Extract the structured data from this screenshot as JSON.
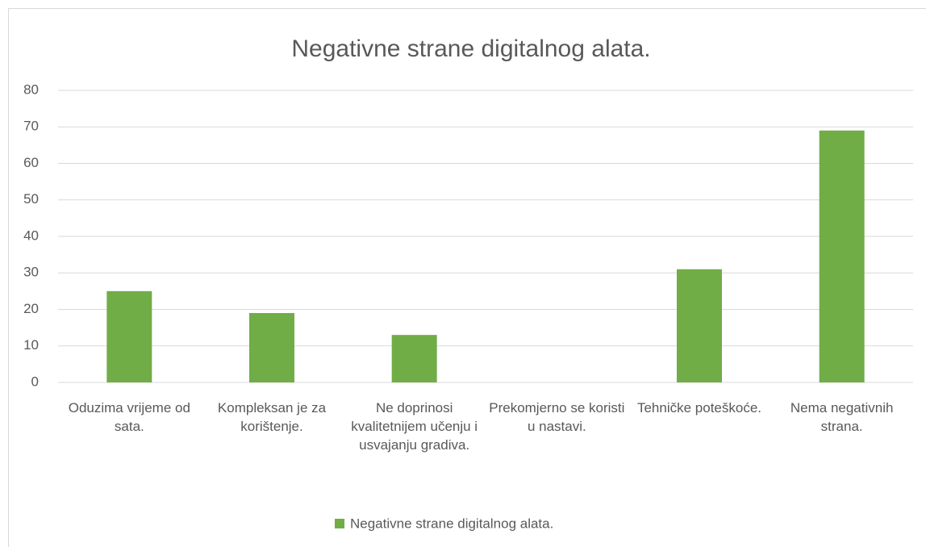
{
  "chart_data": {
    "type": "bar",
    "title": "Negativne strane digitalnog alata.",
    "categories": [
      "Oduzima vrijeme od sata.",
      "Kompleksan je za korištenje.",
      "Ne doprinosi kvalitetnijem učenju i usvajanju gradiva.",
      "Prekomjerno se koristi u nastavi.",
      "Tehničke poteškoće.",
      "Nema negativnih strana."
    ],
    "series": [
      {
        "name": "Negativne strane digitalnog alata.",
        "color": "#70ad47",
        "values": [
          25,
          19,
          13,
          0,
          31,
          69
        ]
      }
    ],
    "ylim": [
      0,
      80
    ],
    "yticks": [
      0,
      10,
      20,
      30,
      40,
      50,
      60,
      70,
      80
    ],
    "grid": true,
    "legend": "bottom"
  }
}
